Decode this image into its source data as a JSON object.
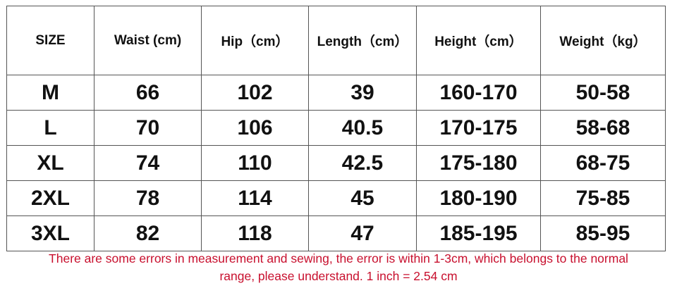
{
  "table": {
    "headers": [
      "SIZE",
      "Waist (cm)",
      "Hip（cm）",
      "Length（cm）",
      "Height（cm）",
      "Weight（kg）"
    ],
    "rows": [
      [
        "M",
        "66",
        "102",
        "39",
        "160-170",
        "50-58"
      ],
      [
        "L",
        "70",
        "106",
        "40.5",
        "170-175",
        "58-68"
      ],
      [
        "XL",
        "74",
        "110",
        "42.5",
        "175-180",
        "68-75"
      ],
      [
        "2XL",
        "78",
        "114",
        "45",
        "180-190",
        "75-85"
      ],
      [
        "3XL",
        "82",
        "118",
        "47",
        "185-195",
        "85-95"
      ]
    ]
  },
  "note": {
    "line1": "There are some errors in measurement and sewing, the error is within 1-3cm, which belongs to the normal",
    "line2": "range, please understand.   1 inch = 2.54 cm",
    "color": "#c8102e"
  }
}
